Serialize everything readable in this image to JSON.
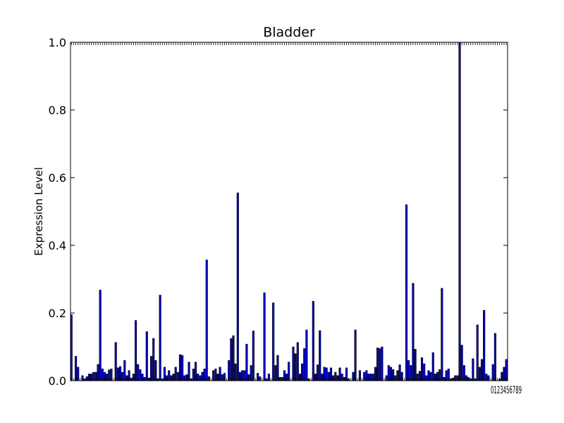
{
  "chart_data": {
    "type": "bar",
    "title": "Bladder",
    "xlabel": "",
    "ylabel": "Expression Level",
    "ylim": [
      0,
      1.0
    ],
    "yticks": [
      "0.0",
      "0.2",
      "0.4",
      "0.6",
      "0.8",
      "1.0"
    ],
    "ytick_values": [
      0,
      0.2,
      0.4,
      0.6,
      0.8,
      1.0
    ],
    "xtick_text": "0123456789",
    "bar_color": "#0000cc",
    "grid": false,
    "values": [
      0.195,
      0.0,
      0.072,
      0.04,
      0.0,
      0.015,
      0.005,
      0.012,
      0.02,
      0.02,
      0.025,
      0.025,
      0.048,
      0.268,
      0.035,
      0.025,
      0.02,
      0.032,
      0.035,
      0.0,
      0.113,
      0.038,
      0.042,
      0.025,
      0.06,
      0.015,
      0.03,
      0.008,
      0.02,
      0.178,
      0.048,
      0.033,
      0.02,
      0.01,
      0.145,
      0.008,
      0.072,
      0.125,
      0.06,
      0.005,
      0.253,
      0.005,
      0.04,
      0.015,
      0.03,
      0.015,
      0.02,
      0.04,
      0.025,
      0.077,
      0.075,
      0.015,
      0.018,
      0.055,
      0.005,
      0.035,
      0.055,
      0.02,
      0.015,
      0.025,
      0.035,
      0.357,
      0.012,
      0.0,
      0.03,
      0.035,
      0.02,
      0.04,
      0.018,
      0.022,
      0.0,
      0.06,
      0.125,
      0.133,
      0.05,
      0.555,
      0.025,
      0.03,
      0.03,
      0.108,
      0.018,
      0.045,
      0.147,
      0.0,
      0.022,
      0.012,
      0.0,
      0.26,
      0.005,
      0.02,
      0.0,
      0.23,
      0.045,
      0.075,
      0.01,
      0.01,
      0.03,
      0.02,
      0.055,
      0.0,
      0.1,
      0.08,
      0.113,
      0.02,
      0.05,
      0.095,
      0.15,
      0.005,
      0.0,
      0.235,
      0.02,
      0.047,
      0.148,
      0.02,
      0.04,
      0.038,
      0.025,
      0.038,
      0.015,
      0.025,
      0.015,
      0.038,
      0.02,
      0.01,
      0.038,
      0.005,
      0.0,
      0.025,
      0.15,
      0.0,
      0.03,
      0.0,
      0.025,
      0.03,
      0.02,
      0.02,
      0.02,
      0.04,
      0.097,
      0.095,
      0.1,
      0.0,
      0.015,
      0.045,
      0.04,
      0.033,
      0.015,
      0.03,
      0.047,
      0.025,
      0.0,
      0.52,
      0.06,
      0.045,
      0.288,
      0.093,
      0.02,
      0.028,
      0.068,
      0.05,
      0.015,
      0.03,
      0.025,
      0.083,
      0.02,
      0.025,
      0.033,
      0.273,
      0.01,
      0.03,
      0.035,
      0.005,
      0.008,
      0.015,
      0.015,
      1.0,
      0.105,
      0.045,
      0.015,
      0.01,
      0.005,
      0.065,
      0.005,
      0.165,
      0.04,
      0.063,
      0.208,
      0.02,
      0.015,
      0.0,
      0.048,
      0.14,
      0.0,
      0.005,
      0.025,
      0.04,
      0.063
    ]
  }
}
